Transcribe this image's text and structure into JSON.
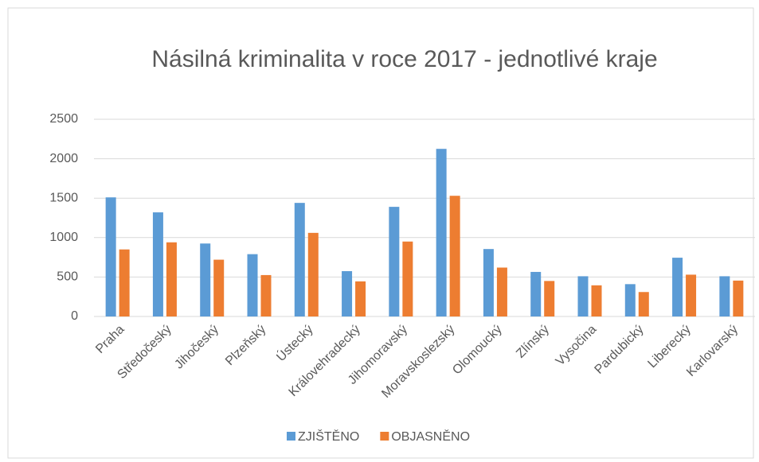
{
  "chart_data": {
    "type": "bar",
    "title": "Násilná kriminalita v roce 2017 - jednotlivé kraje",
    "categories": [
      "Praha",
      "Středočeský",
      "Jihočeský",
      "Plzeňský",
      "Ústecký",
      "Královehradecký",
      "Jihomoravský",
      "Moravskoslezský",
      "Olomoucký",
      "Zlínský",
      "Vysočina",
      "Pardubický",
      "Liberecký",
      "Karlovarský"
    ],
    "series": [
      {
        "name": "ZJIŠTĚNO",
        "color": "#5b9bd5",
        "values": [
          1510,
          1320,
          925,
          790,
          1440,
          575,
          1390,
          2125,
          855,
          565,
          510,
          410,
          745,
          510
        ]
      },
      {
        "name": "OBJASNĚNO",
        "color": "#ed7d31",
        "values": [
          850,
          940,
          720,
          525,
          1060,
          445,
          950,
          1530,
          620,
          450,
          395,
          310,
          530,
          455
        ]
      }
    ],
    "ylim": [
      0,
      2500
    ],
    "yticks": [
      0,
      500,
      1000,
      1500,
      2000,
      2500
    ],
    "grid": true,
    "legend": "bottom"
  }
}
